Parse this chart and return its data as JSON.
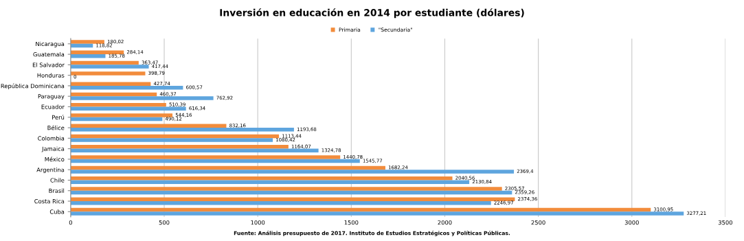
{
  "chart_data": {
    "type": "bar",
    "orientation": "horizontal",
    "title": "Inversión en educación en 2014 por estudiante (dólares)",
    "categories": [
      "Nicaragua",
      "Guatemala",
      "El Salvador",
      "Honduras",
      "República Dominicana",
      "Paraguay",
      "Ecuador",
      "Perú",
      "Bélice",
      "Colombia",
      "Jamaica",
      "México",
      "Argentina",
      "Chile",
      "Brasil",
      "Costa Rica",
      "Cuba"
    ],
    "series": [
      {
        "name": "Primaria",
        "color": "#f28c3c",
        "values": [
          180.02,
          284.14,
          363.47,
          398.79,
          427.74,
          460.37,
          510.39,
          544.16,
          832.16,
          1113.44,
          1164.07,
          1440.78,
          1682.24,
          2040.56,
          2305.57,
          2374.36,
          3100.95
        ],
        "value_labels": [
          "180,02",
          "284,14",
          "363,47",
          "398,79",
          "427,74",
          "460,37",
          "510,39",
          "544,16",
          "832,16",
          "1113,44",
          "1164,07",
          "1440,78",
          "1682,24",
          "2040,56",
          "2305,57",
          "2374,36",
          "3100,95"
        ]
      },
      {
        "name": "\"Secundaria\"",
        "color": "#5ea5de",
        "values": [
          118.82,
          185.78,
          417.44,
          0,
          600.57,
          762.92,
          616.34,
          490.12,
          1193.68,
          1080.42,
          1324.78,
          1545.77,
          2369.4,
          2130.84,
          2359.26,
          2246.97,
          3277.21
        ],
        "value_labels": [
          "118,82",
          "185,78",
          "417,44",
          "0",
          "600,57",
          "762,92",
          "616,34",
          "490,12",
          "1193,68",
          "1080,42",
          "1324,78",
          "1545,77",
          "2369,4",
          "2130,84",
          "2359,26",
          "2246,97",
          "3277,21"
        ]
      }
    ],
    "xlim": [
      0,
      3500
    ],
    "xticks": [
      0,
      500,
      1000,
      1500,
      2000,
      2500,
      3000,
      3500
    ],
    "grid": "x",
    "legend": "top",
    "annotations": [
      "Fuente: Análisis presupuesto de 2017. Instituto de Estudios Estratégicos y Políticas Públicas."
    ]
  }
}
